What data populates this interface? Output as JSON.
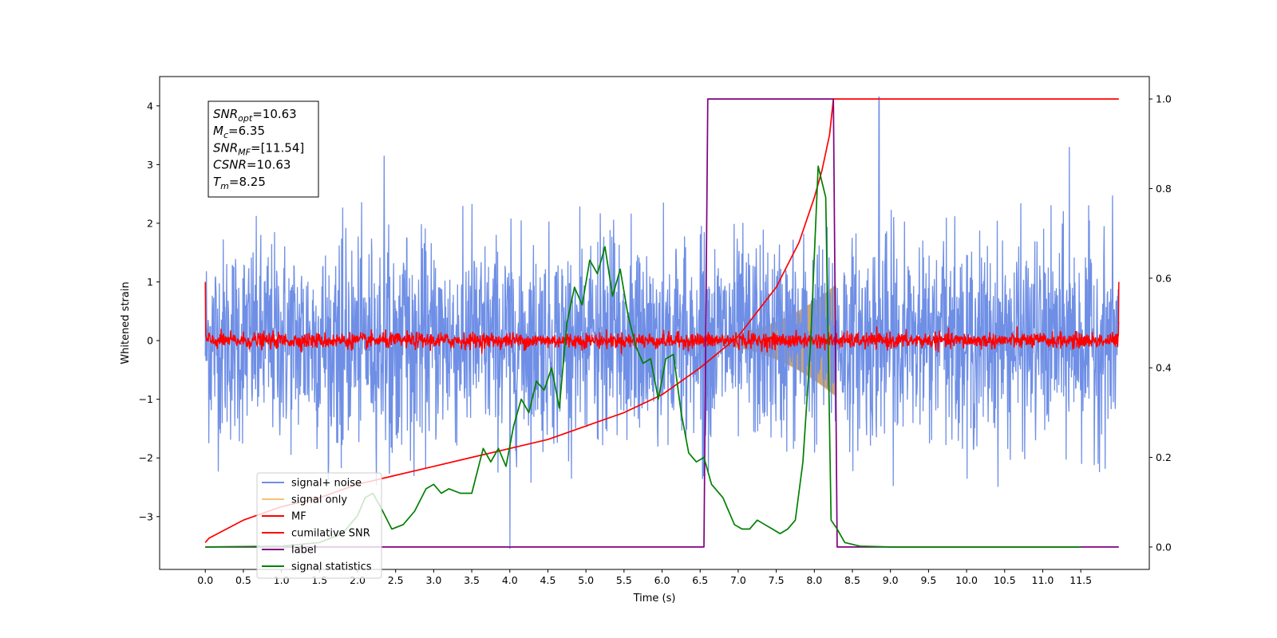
{
  "chart_data": {
    "type": "line",
    "title": "",
    "xlabel": "Time (s)",
    "ylabel": "Whitened strain",
    "xlim": [
      -0.6,
      12.4
    ],
    "ylim": [
      -3.9,
      4.5
    ],
    "y2lim": [
      -0.05,
      1.05
    ],
    "x_ticks": [
      "0.0",
      "0.5",
      "1.0",
      "1.5",
      "2.0",
      "2.5",
      "3.0",
      "3.5",
      "4.0",
      "4.5",
      "5.0",
      "5.5",
      "6.0",
      "6.5",
      "7.0",
      "7.5",
      "8.0",
      "8.5",
      "9.0",
      "9.5",
      "10.0",
      "10.5",
      "11.0",
      "11.5"
    ],
    "y_ticks": [
      "−3",
      "−2",
      "−1",
      "0",
      "1",
      "2",
      "3",
      "4"
    ],
    "y2_ticks": [
      "0.0",
      "0.2",
      "0.4",
      "0.6",
      "0.8",
      "1.0"
    ],
    "grid": false,
    "legend_position": "lower-left",
    "stats_box": {
      "lines": [
        {
          "sym": "SNR",
          "sub": "opt",
          "val": "=10.63"
        },
        {
          "sym": "M",
          "sub": "c",
          "val": "=6.35"
        },
        {
          "sym": "SNR",
          "sub": "MF",
          "val": "=[11.54]"
        },
        {
          "sym": "CSNR",
          "sub": "",
          "val": "=10.63"
        },
        {
          "sym": "T",
          "sub": "m",
          "val": "=8.25"
        }
      ]
    },
    "series": [
      {
        "name": "signal+ noise",
        "color": "#6f8fe6",
        "axis": "left",
        "kind": "noise",
        "x_range": [
          0.0,
          12.0
        ],
        "amplitude": 2.5,
        "spikes": [
          [
            4.0,
            -3.55
          ],
          [
            8.85,
            4.15
          ],
          [
            2.35,
            3.15
          ],
          [
            11.35,
            3.3
          ]
        ]
      },
      {
        "name": "signal only",
        "color": "#f7c27a",
        "axis": "left",
        "kind": "chirp",
        "x_range": [
          6.3,
          8.28
        ],
        "envelope_start": 0.05,
        "envelope_end": 0.95
      },
      {
        "name": "MF",
        "color": "#ff0000",
        "axis": "left",
        "kind": "mf",
        "x_range": [
          0.0,
          12.0
        ],
        "amplitude": 0.15,
        "edge_value": 1.0
      },
      {
        "name": "cumilative SNR",
        "color": "#ff0000",
        "axis": "right",
        "kind": "line",
        "x": [
          0.0,
          0.05,
          0.5,
          1.0,
          1.5,
          2.0,
          2.5,
          3.0,
          3.5,
          4.0,
          4.5,
          5.0,
          5.5,
          6.0,
          6.5,
          7.0,
          7.5,
          7.8,
          8.0,
          8.1,
          8.2,
          8.25,
          9.0,
          10.0,
          11.0,
          12.0
        ],
        "y": [
          0.01,
          0.02,
          0.06,
          0.09,
          0.11,
          0.14,
          0.16,
          0.18,
          0.2,
          0.22,
          0.24,
          0.27,
          0.3,
          0.34,
          0.4,
          0.47,
          0.58,
          0.68,
          0.78,
          0.84,
          0.92,
          1.0,
          1.0,
          1.0,
          1.0,
          1.0
        ]
      },
      {
        "name": "label",
        "color": "#800080",
        "axis": "right",
        "kind": "line",
        "x": [
          0.0,
          6.55,
          6.6,
          8.25,
          8.3,
          12.0
        ],
        "y": [
          0.0,
          0.0,
          1.0,
          1.0,
          0.0,
          0.0
        ]
      },
      {
        "name": "signal statistics",
        "color": "#008000",
        "axis": "right",
        "kind": "line",
        "x": [
          0.0,
          0.5,
          1.0,
          1.5,
          1.8,
          2.0,
          2.1,
          2.2,
          2.3,
          2.45,
          2.6,
          2.75,
          2.9,
          3.0,
          3.1,
          3.2,
          3.35,
          3.5,
          3.65,
          3.75,
          3.85,
          3.95,
          4.05,
          4.15,
          4.25,
          4.35,
          4.45,
          4.55,
          4.65,
          4.75,
          4.85,
          4.95,
          5.05,
          5.15,
          5.25,
          5.35,
          5.45,
          5.55,
          5.65,
          5.75,
          5.85,
          5.95,
          6.05,
          6.15,
          6.25,
          6.35,
          6.45,
          6.55,
          6.65,
          6.8,
          6.95,
          7.05,
          7.15,
          7.25,
          7.35,
          7.45,
          7.55,
          7.65,
          7.75,
          7.85,
          7.95,
          8.05,
          8.15,
          8.22,
          8.3,
          8.4,
          8.6,
          9.0,
          10.0,
          11.0,
          11.5
        ],
        "y": [
          0.0,
          0.001,
          0.002,
          0.01,
          0.03,
          0.07,
          0.11,
          0.12,
          0.09,
          0.04,
          0.05,
          0.08,
          0.13,
          0.14,
          0.12,
          0.13,
          0.12,
          0.12,
          0.22,
          0.19,
          0.22,
          0.18,
          0.27,
          0.33,
          0.3,
          0.37,
          0.35,
          0.4,
          0.31,
          0.5,
          0.58,
          0.54,
          0.64,
          0.61,
          0.67,
          0.56,
          0.62,
          0.52,
          0.45,
          0.41,
          0.42,
          0.33,
          0.42,
          0.43,
          0.3,
          0.21,
          0.19,
          0.2,
          0.14,
          0.11,
          0.05,
          0.04,
          0.04,
          0.06,
          0.05,
          0.04,
          0.03,
          0.04,
          0.06,
          0.19,
          0.45,
          0.85,
          0.78,
          0.06,
          0.04,
          0.01,
          0.002,
          0.0,
          0.0,
          0.0,
          0.0
        ]
      }
    ]
  }
}
